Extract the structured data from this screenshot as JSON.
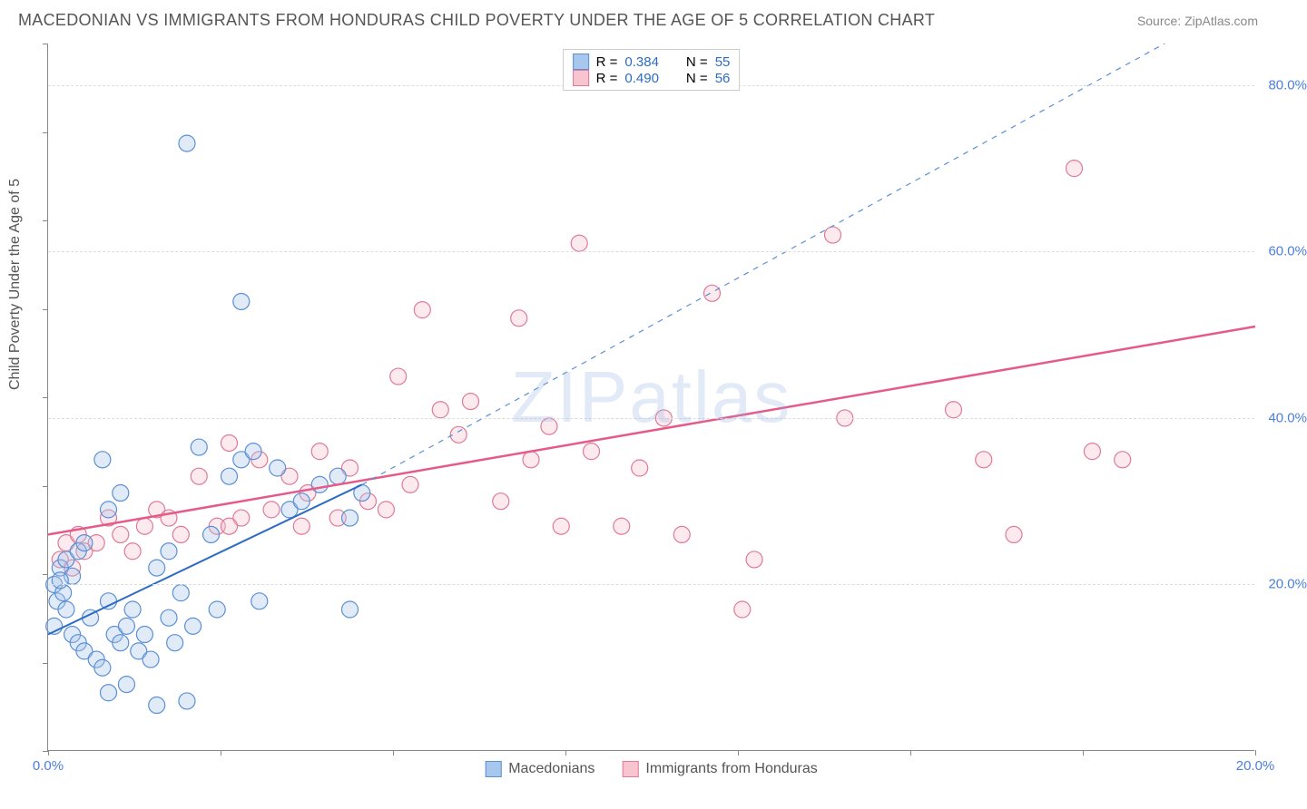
{
  "header": {
    "title": "MACEDONIAN VS IMMIGRANTS FROM HONDURAS CHILD POVERTY UNDER THE AGE OF 5 CORRELATION CHART",
    "source": "Source: ZipAtlas.com"
  },
  "chart": {
    "type": "scatter",
    "ylabel": "Child Poverty Under the Age of 5",
    "watermark": "ZIPatlas",
    "background_color": "#ffffff",
    "grid_color": "#dddddd",
    "axis_color": "#888888",
    "xlim": [
      0,
      20
    ],
    "ylim": [
      0,
      85
    ],
    "x_ticks": [
      0,
      2.86,
      5.71,
      8.57,
      11.43,
      14.29,
      17.14,
      20
    ],
    "x_tick_labels": {
      "0": "0.0%",
      "20": "20.0%"
    },
    "y_gridlines": [
      20,
      40,
      60,
      80
    ],
    "y_tick_labels": {
      "20": "20.0%",
      "40": "40.0%",
      "60": "60.0%",
      "80": "80.0%"
    },
    "tick_label_color": "#4a7fd8",
    "label_fontsize": 16,
    "title_fontsize": 18,
    "series": {
      "macedonians": {
        "label": "Macedonians",
        "fill_color": "#a8c7ec",
        "stroke_color": "#5b8fd6",
        "marker_radius": 9,
        "r_value": "0.384",
        "n_value": "55",
        "trend_line": {
          "x1": 0,
          "y1": 14,
          "x2": 5.2,
          "y2": 32,
          "solid": true,
          "color": "#2d6bc4",
          "width": 2
        },
        "trend_ext": {
          "x1": 5.2,
          "y1": 32,
          "x2": 18.5,
          "y2": 85,
          "solid": false,
          "color": "#5b8fd6",
          "width": 1.2
        },
        "points": [
          [
            0.1,
            20
          ],
          [
            0.15,
            18
          ],
          [
            0.2,
            22
          ],
          [
            0.25,
            19
          ],
          [
            0.3,
            23
          ],
          [
            0.1,
            15
          ],
          [
            0.4,
            14
          ],
          [
            0.5,
            13
          ],
          [
            0.6,
            12
          ],
          [
            0.3,
            17
          ],
          [
            0.7,
            16
          ],
          [
            0.8,
            11
          ],
          [
            0.9,
            10
          ],
          [
            0.4,
            21
          ],
          [
            0.2,
            20.5
          ],
          [
            1.0,
            18
          ],
          [
            1.1,
            14
          ],
          [
            1.2,
            13
          ],
          [
            0.5,
            24
          ],
          [
            0.6,
            25
          ],
          [
            1.3,
            15
          ],
          [
            1.4,
            17
          ],
          [
            1.5,
            12
          ],
          [
            1.0,
            29
          ],
          [
            1.6,
            14
          ],
          [
            1.7,
            11
          ],
          [
            1.8,
            5.5
          ],
          [
            0.9,
            35
          ],
          [
            2.0,
            16
          ],
          [
            2.1,
            13
          ],
          [
            2.2,
            19
          ],
          [
            1.2,
            31
          ],
          [
            2.3,
            6
          ],
          [
            2.4,
            15
          ],
          [
            2.5,
            36.5
          ],
          [
            2.8,
            17
          ],
          [
            2.7,
            26
          ],
          [
            3.0,
            33
          ],
          [
            3.2,
            35
          ],
          [
            3.4,
            36
          ],
          [
            3.5,
            18
          ],
          [
            3.8,
            34
          ],
          [
            4.0,
            29
          ],
          [
            4.2,
            30
          ],
          [
            4.5,
            32
          ],
          [
            4.8,
            33
          ],
          [
            5.0,
            28
          ],
          [
            5.2,
            31
          ],
          [
            2.3,
            73
          ],
          [
            3.2,
            54
          ],
          [
            5.0,
            17
          ],
          [
            2.0,
            24
          ],
          [
            1.8,
            22
          ],
          [
            1.0,
            7
          ],
          [
            1.3,
            8
          ]
        ]
      },
      "honduras": {
        "label": "Immigrants from Honduras",
        "fill_color": "#f7c4d0",
        "stroke_color": "#e07a95",
        "marker_radius": 9,
        "r_value": "0.490",
        "n_value": "56",
        "trend_line": {
          "x1": 0,
          "y1": 26,
          "x2": 20,
          "y2": 51,
          "solid": true,
          "color": "#e65a8a",
          "width": 2.5
        },
        "points": [
          [
            0.2,
            23
          ],
          [
            0.3,
            25
          ],
          [
            0.4,
            22
          ],
          [
            0.5,
            26
          ],
          [
            0.6,
            24
          ],
          [
            0.8,
            25
          ],
          [
            1.0,
            28
          ],
          [
            1.2,
            26
          ],
          [
            1.4,
            24
          ],
          [
            1.6,
            27
          ],
          [
            1.8,
            29
          ],
          [
            2.0,
            28
          ],
          [
            2.2,
            26
          ],
          [
            2.5,
            33
          ],
          [
            2.8,
            27
          ],
          [
            3.0,
            37
          ],
          [
            3.2,
            28
          ],
          [
            3.5,
            35
          ],
          [
            3.7,
            29
          ],
          [
            4.0,
            33
          ],
          [
            4.3,
            31
          ],
          [
            4.5,
            36
          ],
          [
            4.8,
            28
          ],
          [
            5.0,
            34
          ],
          [
            5.3,
            30
          ],
          [
            5.8,
            45
          ],
          [
            5.6,
            29
          ],
          [
            6.2,
            53
          ],
          [
            6.5,
            41
          ],
          [
            6.8,
            38
          ],
          [
            7.0,
            42
          ],
          [
            7.8,
            52
          ],
          [
            8.0,
            35
          ],
          [
            8.3,
            39
          ],
          [
            8.8,
            61
          ],
          [
            9.5,
            27
          ],
          [
            9.8,
            34
          ],
          [
            8.5,
            27
          ],
          [
            10.2,
            40
          ],
          [
            10.5,
            26
          ],
          [
            11.0,
            55
          ],
          [
            11.5,
            17
          ],
          [
            11.7,
            23
          ],
          [
            13.0,
            62
          ],
          [
            13.2,
            40
          ],
          [
            15,
            41
          ],
          [
            15.5,
            35
          ],
          [
            16,
            26
          ],
          [
            17,
            70
          ],
          [
            17.3,
            36
          ],
          [
            17.8,
            35
          ],
          [
            7.5,
            30
          ],
          [
            6.0,
            32
          ],
          [
            4.2,
            27
          ],
          [
            3.0,
            27
          ],
          [
            9.0,
            36
          ]
        ]
      }
    },
    "legend_top": {
      "r_label": "R =",
      "n_label": "N =",
      "value_color": "#2d6bc4",
      "text_color": "#555555"
    }
  }
}
